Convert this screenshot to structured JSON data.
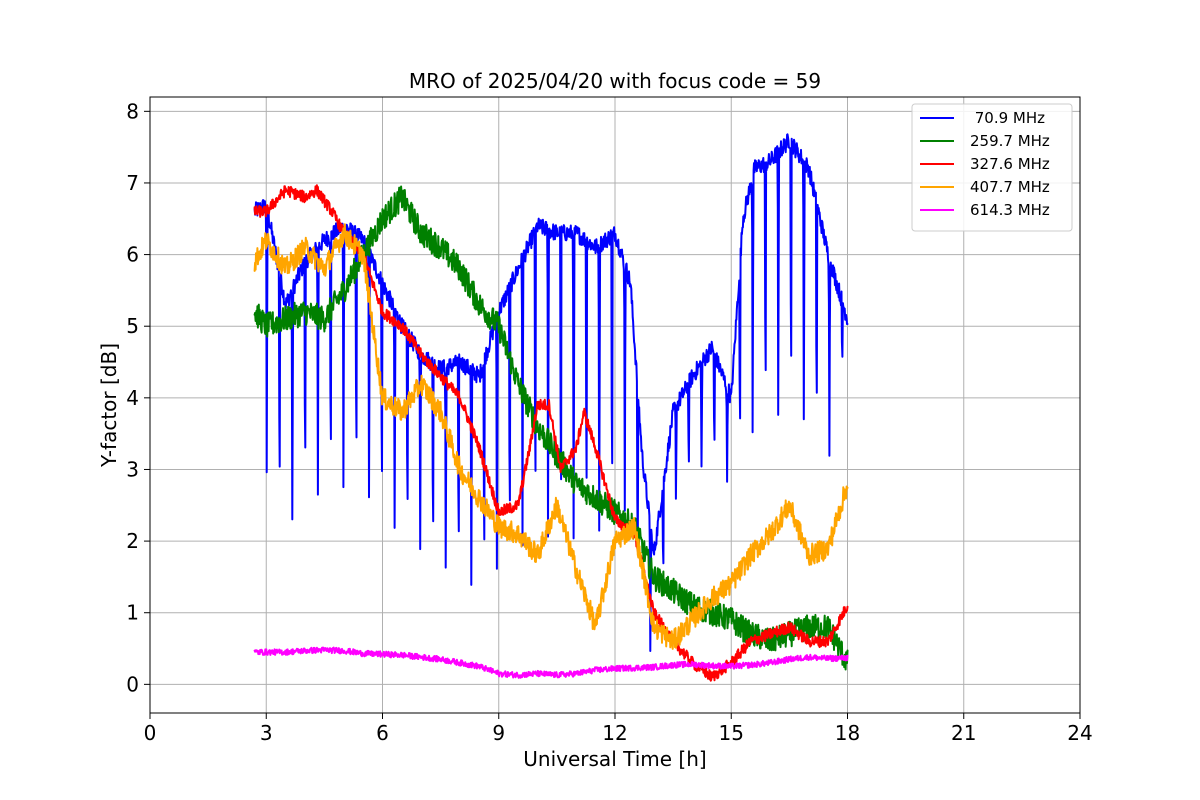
{
  "chart_data": {
    "type": "line",
    "title": "MRO of 2025/04/20 with focus code = 59",
    "xlabel": "Universal Time [h]",
    "ylabel": "Y-factor [dB]",
    "xlim": [
      0,
      24
    ],
    "ylim": [
      -0.4,
      8.2
    ],
    "x_ticks": [
      0,
      3,
      6,
      9,
      12,
      15,
      18,
      21,
      24
    ],
    "y_ticks": [
      0,
      1,
      2,
      3,
      4,
      5,
      6,
      7,
      8
    ],
    "grid": true,
    "legend_position": "top-right",
    "series": [
      {
        "name": " 70.9 MHz",
        "color": "#0000ff",
        "x": [
          2.7,
          3.0,
          3.5,
          4.0,
          4.5,
          5.0,
          5.5,
          6.0,
          6.5,
          7.0,
          7.5,
          8.0,
          8.5,
          9.0,
          9.5,
          10.0,
          10.5,
          11.0,
          11.5,
          12.0,
          12.4,
          12.7,
          13.0,
          13.5,
          14.0,
          14.5,
          15.0,
          15.3,
          15.6,
          16.0,
          16.5,
          17.0,
          17.5,
          18.0
        ],
        "y": [
          6.6,
          6.7,
          5.3,
          5.9,
          6.2,
          6.4,
          6.2,
          5.6,
          5.0,
          4.6,
          4.4,
          4.5,
          4.3,
          5.2,
          5.8,
          6.4,
          6.3,
          6.3,
          6.1,
          6.3,
          5.6,
          3.2,
          1.8,
          3.8,
          4.3,
          4.7,
          4.0,
          6.5,
          7.2,
          7.3,
          7.6,
          7.2,
          6.0,
          5.1
        ],
        "dip_floor": [
          3.0,
          2.6,
          1.8,
          2.3,
          2.3,
          2.4,
          2.4,
          2.0,
          1.8,
          1.6,
          1.4,
          1.2,
          1.0,
          1.3,
          1.5,
          1.7,
          1.6,
          1.6,
          1.7,
          1.9,
          2.2,
          0.5,
          0.2,
          2.4,
          2.8,
          3.0,
          2.6,
          3.0,
          3.2,
          3.3,
          3.5,
          3.3,
          2.8,
          4.8
        ],
        "dip_period_h": 0.33
      },
      {
        "name": "259.7 MHz",
        "color": "#008000",
        "x": [
          2.7,
          3.0,
          3.5,
          4.0,
          4.5,
          5.0,
          5.5,
          6.0,
          6.5,
          7.0,
          7.5,
          8.0,
          8.5,
          9.0,
          9.5,
          10.0,
          10.5,
          11.0,
          11.5,
          12.0,
          12.5,
          13.0,
          13.5,
          14.0,
          14.5,
          15.0,
          15.5,
          16.0,
          16.5,
          17.0,
          17.5,
          18.0
        ],
        "y": [
          5.2,
          5.0,
          5.1,
          5.2,
          5.1,
          5.5,
          6.0,
          6.5,
          6.8,
          6.3,
          6.1,
          5.8,
          5.3,
          5.0,
          4.2,
          3.6,
          3.2,
          2.8,
          2.6,
          2.4,
          2.2,
          1.5,
          1.3,
          1.1,
          1.0,
          0.9,
          0.7,
          0.6,
          0.7,
          0.8,
          0.8,
          0.3
        ]
      },
      {
        "name": "327.6 MHz",
        "color": "#ff0000",
        "x": [
          2.7,
          3.0,
          3.5,
          4.0,
          4.3,
          4.7,
          5.0,
          5.5,
          6.0,
          6.5,
          7.0,
          7.5,
          8.0,
          8.5,
          9.0,
          9.5,
          9.8,
          10.0,
          10.3,
          10.6,
          11.0,
          11.2,
          11.5,
          12.0,
          12.5,
          13.0,
          13.5,
          14.0,
          14.5,
          15.0,
          15.5,
          16.0,
          16.5,
          17.0,
          17.5,
          18.0
        ],
        "y": [
          6.6,
          6.6,
          6.9,
          6.8,
          6.9,
          6.6,
          6.3,
          6.0,
          5.2,
          5.0,
          4.6,
          4.3,
          4.0,
          3.3,
          2.4,
          2.5,
          3.3,
          3.9,
          3.9,
          3.0,
          3.3,
          3.8,
          3.3,
          2.3,
          2.1,
          1.0,
          0.6,
          0.3,
          0.1,
          0.3,
          0.6,
          0.7,
          0.8,
          0.6,
          0.6,
          1.1
        ]
      },
      {
        "name": "407.7 MHz",
        "color": "#ffa500",
        "x": [
          2.7,
          3.0,
          3.5,
          4.0,
          4.5,
          5.0,
          5.5,
          6.0,
          6.5,
          7.0,
          7.5,
          8.0,
          8.5,
          9.0,
          9.5,
          10.0,
          10.5,
          11.0,
          11.5,
          12.0,
          12.5,
          13.0,
          13.5,
          14.0,
          14.5,
          15.0,
          15.5,
          16.0,
          16.5,
          17.0,
          17.5,
          18.0
        ],
        "y": [
          5.9,
          6.2,
          5.8,
          6.1,
          5.8,
          6.3,
          6.0,
          4.0,
          3.8,
          4.2,
          3.8,
          3.0,
          2.6,
          2.2,
          2.1,
          1.8,
          2.5,
          1.6,
          0.8,
          2.0,
          2.2,
          0.8,
          0.6,
          0.9,
          1.2,
          1.4,
          1.8,
          2.1,
          2.5,
          1.8,
          1.9,
          2.8
        ]
      },
      {
        "name": "614.3 MHz",
        "color": "#ff00ff",
        "x": [
          2.7,
          3.0,
          3.5,
          4.0,
          4.5,
          5.0,
          5.5,
          6.0,
          6.5,
          7.0,
          7.5,
          8.0,
          8.5,
          9.0,
          9.5,
          10.0,
          10.5,
          11.0,
          11.5,
          12.0,
          12.5,
          13.0,
          13.5,
          14.0,
          14.5,
          15.0,
          15.5,
          16.0,
          16.5,
          17.0,
          17.5,
          18.0
        ],
        "y": [
          0.45,
          0.45,
          0.45,
          0.47,
          0.48,
          0.47,
          0.43,
          0.42,
          0.41,
          0.38,
          0.35,
          0.3,
          0.25,
          0.15,
          0.13,
          0.15,
          0.13,
          0.15,
          0.2,
          0.22,
          0.23,
          0.24,
          0.27,
          0.28,
          0.26,
          0.25,
          0.27,
          0.3,
          0.35,
          0.38,
          0.36,
          0.37
        ]
      }
    ]
  }
}
